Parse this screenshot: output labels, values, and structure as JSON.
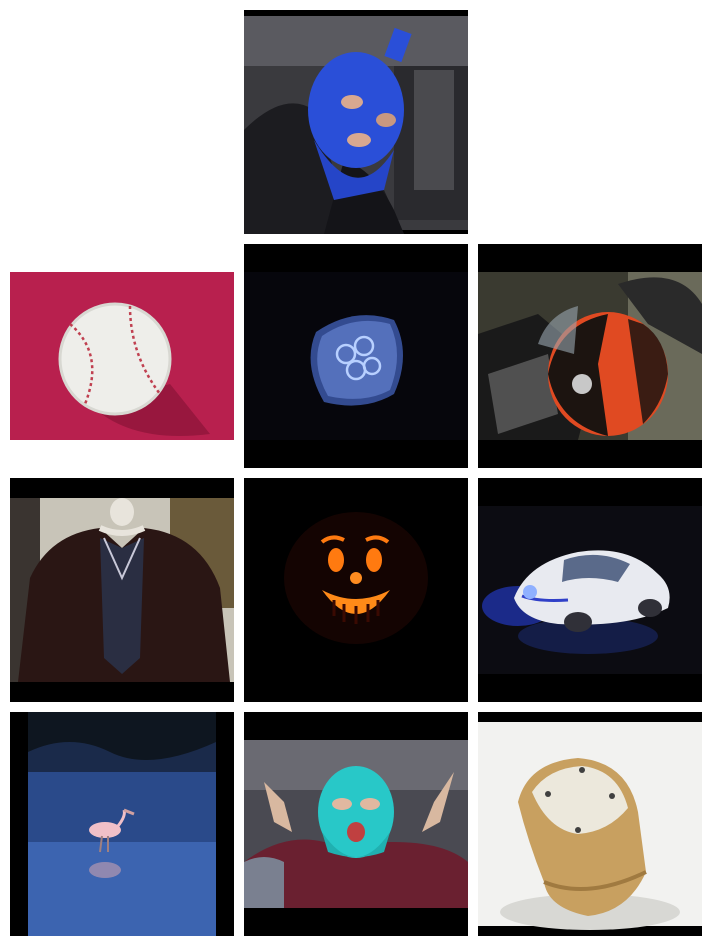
{
  "grid": {
    "columns": 3,
    "tiles": [
      {
        "subject": "blue-balaclava-person"
      },
      {
        "subject": "baseball"
      },
      {
        "subject": "jellyfish"
      },
      {
        "subject": "motorcycle-helmet"
      },
      {
        "subject": "fur-coat-mannequin"
      },
      {
        "subject": "jack-o-lantern"
      },
      {
        "subject": "toy-car-mouse"
      },
      {
        "subject": "spoonbill-bird"
      },
      {
        "subject": "teal-balaclava-person"
      },
      {
        "subject": "knee-pad"
      }
    ]
  }
}
